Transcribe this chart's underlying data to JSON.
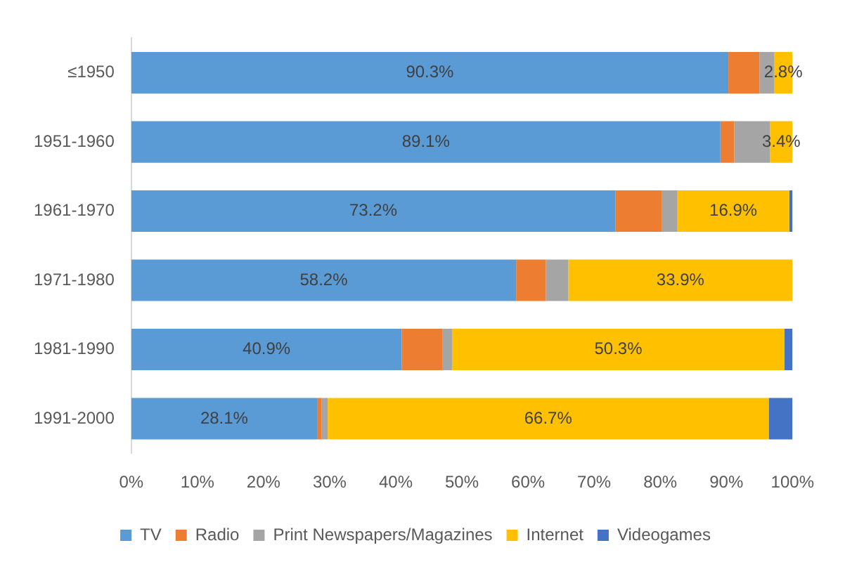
{
  "chart_data": {
    "type": "bar",
    "orientation": "horizontal",
    "stacked": true,
    "categories": [
      "≤1950",
      "1951-1960",
      "1961-1970",
      "1971-1980",
      "1981-1990",
      "1991-2000"
    ],
    "series": [
      {
        "name": "TV",
        "color": "#5b9bd5",
        "values": [
          90.3,
          89.1,
          73.2,
          58.2,
          40.9,
          28.1
        ],
        "value_labels": [
          "90.3%",
          "89.1%",
          "73.2%",
          "58.2%",
          "40.9%",
          "28.1%"
        ]
      },
      {
        "name": "Radio",
        "color": "#ed7d31",
        "values": [
          4.7,
          2.1,
          7.0,
          4.5,
          6.2,
          0.7
        ]
      },
      {
        "name": "Print Newspapers/Magazines",
        "color": "#a5a5a5",
        "values": [
          2.2,
          5.4,
          2.4,
          3.4,
          1.4,
          0.9
        ]
      },
      {
        "name": "Internet",
        "color": "#ffc000",
        "values": [
          2.8,
          3.4,
          16.9,
          33.9,
          50.3,
          66.7
        ],
        "value_labels": [
          "2.8%",
          "3.4%",
          "16.9%",
          "33.9%",
          "50.3%",
          "66.7%"
        ]
      },
      {
        "name": "Videogames",
        "color": "#4472c4",
        "values": [
          0,
          0,
          0.5,
          0,
          1.2,
          3.6
        ]
      }
    ],
    "xlim": [
      0,
      100
    ],
    "xticks": [
      {
        "value": 0,
        "label": "0%"
      },
      {
        "value": 10,
        "label": "10%"
      },
      {
        "value": 20,
        "label": "20%"
      },
      {
        "value": 30,
        "label": "30%"
      },
      {
        "value": 40,
        "label": "40%"
      },
      {
        "value": 50,
        "label": "50%"
      },
      {
        "value": 60,
        "label": "60%"
      },
      {
        "value": 70,
        "label": "70%"
      },
      {
        "value": 80,
        "label": "80%"
      },
      {
        "value": 90,
        "label": "90%"
      },
      {
        "value": 100,
        "label": "100%"
      }
    ],
    "grid": false,
    "legend": "bottom"
  }
}
